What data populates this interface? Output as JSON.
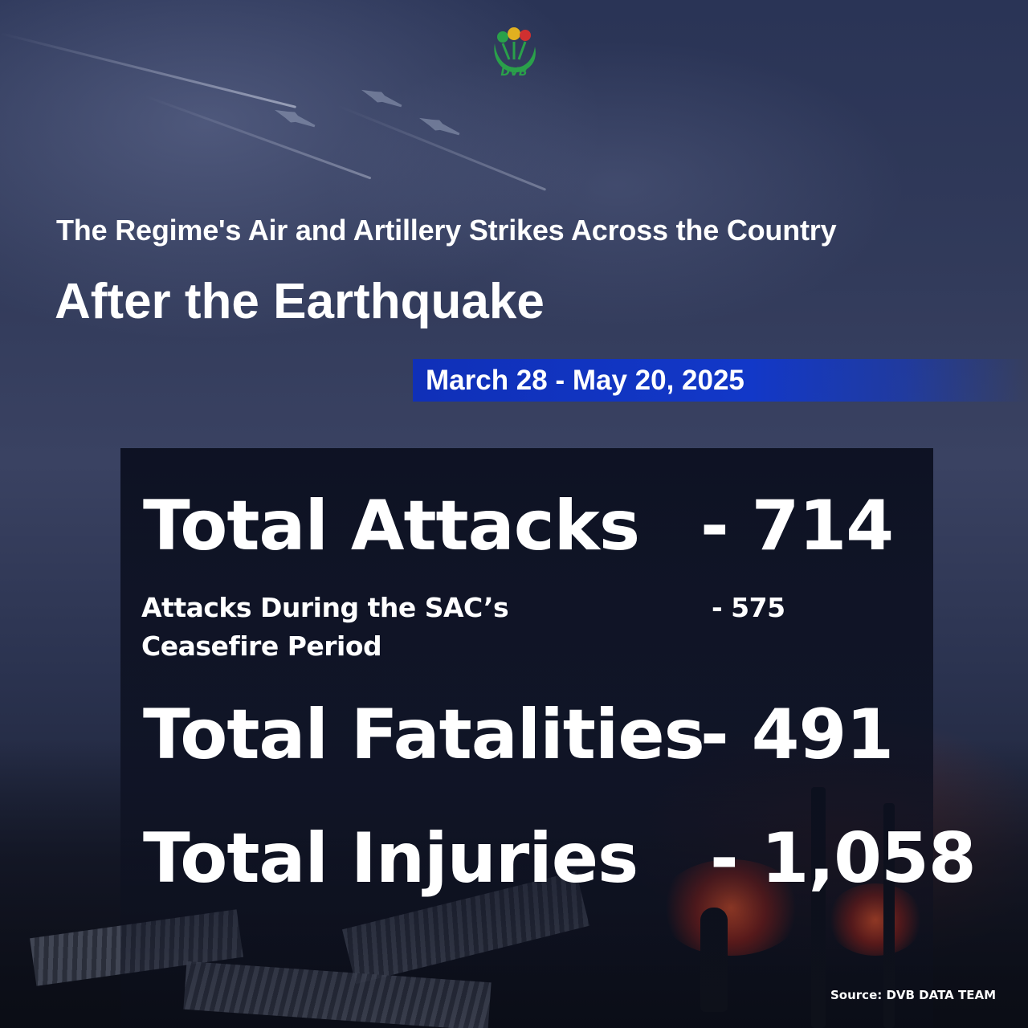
{
  "logo": {
    "text": "DVB",
    "icon": "dvb-logo-icon"
  },
  "header": {
    "subtitle": "The Regime's Air and Artillery Strikes Across the Country",
    "title": "After the Earthquake",
    "date_range": "March 28 - May 20, 2025"
  },
  "stats": {
    "total_attacks": {
      "label": "Total Attacks",
      "value": "- 714"
    },
    "ceasefire_attacks": {
      "label_line1": "Attacks During the SAC’s",
      "label_line2": "Ceasefire Period",
      "value": "- 575"
    },
    "total_fatalities": {
      "label": "Total Fatalities",
      "value": "- 491"
    },
    "total_injuries": {
      "label": "Total Injuries",
      "value": "- 1,058"
    }
  },
  "source": "Source: DVB DATA TEAM",
  "colors": {
    "date_band": "#1238c8",
    "text": "#ffffff",
    "logo_green": "#2aa04a"
  }
}
